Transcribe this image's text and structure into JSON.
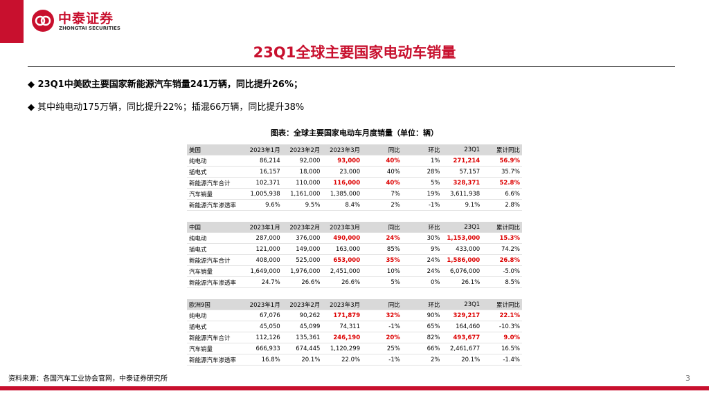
{
  "header": {
    "logo_cn": "中泰证券",
    "logo_en": "ZHONGTAI SECURITIES"
  },
  "title": "23Q1全球主要国家电动车销量",
  "bullets": [
    "23Q1中美欧主要国家新能源汽车销量241万辆，同比提升26%；",
    "其中纯电动175万辆，同比提升22%；插混66万辆，同比提升38%"
  ],
  "caption": "图表：全球主要国家电动车月度销量（单位：辆）",
  "tables": [
    {
      "rows": [
        [
          "美国",
          "2023年1月",
          "2023年2月",
          "2023年3月",
          "同比",
          "环比",
          "23Q1",
          "累计同比"
        ],
        [
          "纯电动",
          "86,214",
          "92,000",
          "93,000",
          "40%",
          "1%",
          "271,214",
          "56.9%"
        ],
        [
          "插电式",
          "16,157",
          "18,000",
          "23,000",
          "40%",
          "28%",
          "57,157",
          "35.7%"
        ],
        [
          "新能源汽车合计",
          "102,371",
          "110,000",
          "116,000",
          "40%",
          "5%",
          "328,371",
          "52.8%"
        ],
        [
          "汽车销量",
          "1,005,938",
          "1,161,000",
          "1,385,000",
          "7%",
          "19%",
          "3,611,938",
          "6.6%"
        ],
        [
          "新能源汽车渗透率",
          "9.6%",
          "9.5%",
          "8.4%",
          "2%",
          "-1%",
          "9.1%",
          "2.8%"
        ]
      ]
    },
    {
      "rows": [
        [
          "中国",
          "2023年1月",
          "2023年2月",
          "2023年3月",
          "同比",
          "环比",
          "23Q1",
          "累计同比"
        ],
        [
          "纯电动",
          "287,000",
          "376,000",
          "490,000",
          "24%",
          "30%",
          "1,153,000",
          "15.3%"
        ],
        [
          "插电式",
          "121,000",
          "149,000",
          "163,000",
          "85%",
          "9%",
          "433,000",
          "74.2%"
        ],
        [
          "新能源汽车合计",
          "408,000",
          "525,000",
          "653,000",
          "35%",
          "24%",
          "1,586,000",
          "26.8%"
        ],
        [
          "汽车销量",
          "1,649,000",
          "1,976,000",
          "2,451,000",
          "10%",
          "24%",
          "6,076,000",
          "-5.0%"
        ],
        [
          "新能源汽车渗透率",
          "24.7%",
          "26.6%",
          "26.6%",
          "5%",
          "0%",
          "26.1%",
          "8.5%"
        ]
      ]
    },
    {
      "rows": [
        [
          "欧洲9国",
          "2023年1月",
          "2023年2月",
          "2023年3月",
          "同比",
          "环比",
          "23Q1",
          "累计同比"
        ],
        [
          "纯电动",
          "67,076",
          "90,262",
          "171,879",
          "32%",
          "90%",
          "329,217",
          "22.1%"
        ],
        [
          "插电式",
          "45,050",
          "45,099",
          "74,311",
          "-1%",
          "65%",
          "164,460",
          "-10.3%"
        ],
        [
          "新能源汽车合计",
          "112,126",
          "135,361",
          "246,190",
          "20%",
          "82%",
          "493,677",
          "9.0%"
        ],
        [
          "汽车销量",
          "666,933",
          "674,445",
          "1,120,299",
          "25%",
          "66%",
          "2,461,677",
          "16.5%"
        ],
        [
          "新能源汽车渗透率",
          "16.8%",
          "20.1%",
          "22.0%",
          "-1%",
          "2%",
          "20.1%",
          "-1.4%"
        ]
      ]
    }
  ],
  "source": "资料来源：各国汽车工业协会官网，中泰证券研究所",
  "page_number": "3"
}
